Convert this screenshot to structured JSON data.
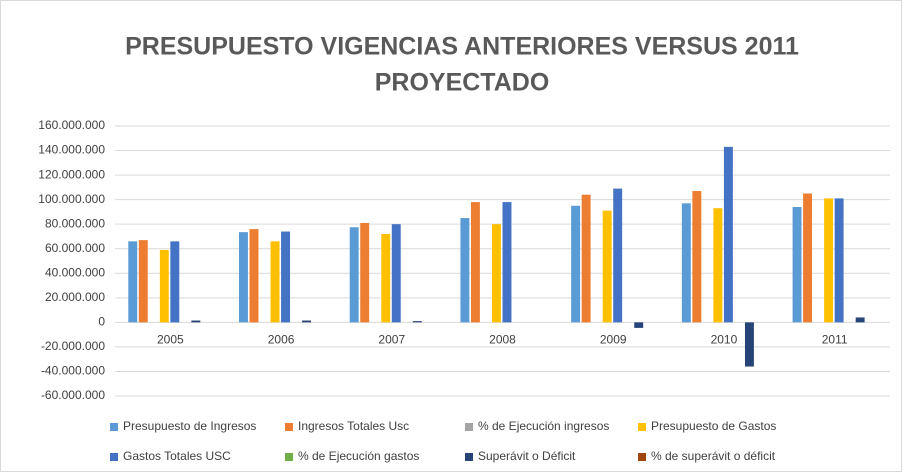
{
  "chart_data": {
    "type": "bar",
    "title": [
      "PRESUPUESTO VIGENCIAS ANTERIORES VERSUS 2011",
      "PROYECTADO"
    ],
    "categories": [
      "2005",
      "2006",
      "2007",
      "2008",
      "2009",
      "2010",
      "2011"
    ],
    "series": [
      {
        "name": "Presupuesto de Ingresos",
        "color": "#5b9bd5",
        "values": [
          66000000,
          73500000,
          77500000,
          85000000,
          95000000,
          97000000,
          94000000
        ]
      },
      {
        "name": "Ingresos Totales Usc",
        "color": "#ed7d31",
        "values": [
          67000000,
          76000000,
          81000000,
          98000000,
          104000000,
          107000000,
          105000000
        ]
      },
      {
        "name": "% de Ejecución ingresos",
        "color": "#a5a5a5",
        "values": [
          101,
          103,
          104,
          116,
          110,
          111,
          112
        ]
      },
      {
        "name": "Presupuesto de Gastos",
        "color": "#ffc000",
        "values": [
          59000000,
          66000000,
          72000000,
          80000000,
          91000000,
          93000000,
          101000000
        ]
      },
      {
        "name": "Gastos Totales USC",
        "color": "#4472c4",
        "values": [
          66000000,
          74000000,
          80000000,
          98000000,
          109000000,
          143000000,
          101000000
        ]
      },
      {
        "name": "% de Ejecución gastos",
        "color": "#70ad47",
        "values": [
          100,
          101,
          102,
          112,
          106,
          127,
          100
        ]
      },
      {
        "name": "Superávit o Déficit",
        "color": "#264478",
        "values": [
          1500000,
          1500000,
          1000000,
          0,
          -4500000,
          -36000000,
          4000000
        ]
      },
      {
        "name": "% de superávit o déficit",
        "color": "#9e480e",
        "values": [
          2,
          2,
          1,
          0,
          -4,
          -34,
          4
        ]
      }
    ],
    "ylim": [
      -60000000,
      160000000
    ],
    "yticks": [
      {
        "value": -60000000,
        "label": "-60.000.000"
      },
      {
        "value": -40000000,
        "label": "-40.000.000"
      },
      {
        "value": -20000000,
        "label": "-20.000.000"
      },
      0,
      {
        "value": 20000000,
        "label": "20.000.000"
      },
      {
        "value": 40000000,
        "label": "40.000.000"
      },
      {
        "value": 60000000,
        "label": "60.000.000"
      },
      {
        "value": 80000000,
        "label": "80.000.000"
      },
      {
        "value": 100000000,
        "label": "100.000.000"
      },
      {
        "value": 120000000,
        "label": "120.000.000"
      },
      {
        "value": 140000000,
        "label": "140.000.000"
      },
      {
        "value": 160000000,
        "label": "160.000.000"
      }
    ],
    "grid": true,
    "legend": "bottom"
  }
}
